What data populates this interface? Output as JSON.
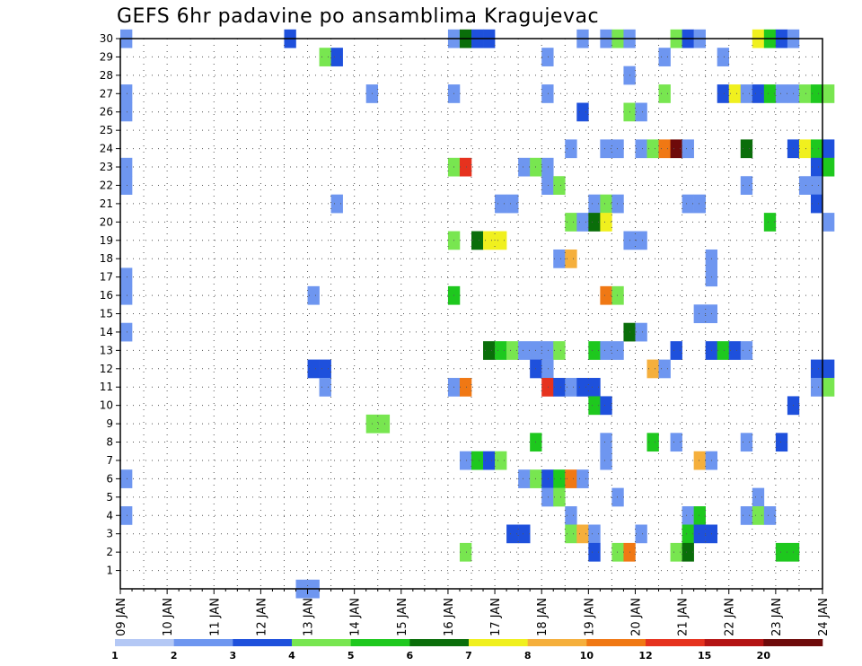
{
  "title": "GEFS 6hr padavine po ansamblima Kragujevac",
  "chart_data": {
    "type": "heatmap",
    "title": "GEFS 6hr padavine po ansamblima Kragujevac",
    "x_ticks": [
      "09 JAN",
      "10 JAN",
      "11 JAN",
      "12 JAN",
      "13 JAN",
      "14 JAN",
      "15 JAN",
      "16 JAN",
      "17 JAN",
      "18 JAN",
      "19 JAN",
      "20 JAN",
      "21 JAN",
      "22 JAN",
      "23 JAN",
      "24 JAN"
    ],
    "y_ticks": [
      1,
      2,
      3,
      4,
      5,
      6,
      7,
      8,
      9,
      10,
      11,
      12,
      13,
      14,
      15,
      16,
      17,
      18,
      19,
      20,
      21,
      22,
      23,
      24,
      25,
      26,
      27,
      28,
      29,
      30
    ],
    "ylim": [
      0,
      30
    ],
    "xlim_days": [
      "09 JAN",
      "24 JAN"
    ],
    "grid": true,
    "legend_placement": "bottom",
    "legend_levels": [
      "1",
      "2",
      "3",
      "4",
      "5",
      "6",
      "7",
      "8",
      "10",
      "12",
      "15",
      "20"
    ],
    "legend_colors": [
      "#b4c8f5",
      "#6e96f0",
      "#1e50dc",
      "#78e650",
      "#1ec81e",
      "#0a6e0a",
      "#f0f01e",
      "#f5af3c",
      "#f07814",
      "#e6321e",
      "#b41414",
      "#6e0a0a"
    ],
    "cells": [
      {
        "member": 30,
        "step": 0,
        "v": 1
      },
      {
        "member": 30,
        "step": 14,
        "v": 2
      },
      {
        "member": 30,
        "step": 28,
        "v": 1
      },
      {
        "member": 30,
        "step": 29,
        "v": 5
      },
      {
        "member": 30,
        "step": 30,
        "v": 2
      },
      {
        "member": 30,
        "step": 31,
        "v": 2
      },
      {
        "member": 30,
        "step": 39,
        "v": 1
      },
      {
        "member": 30,
        "step": 41,
        "v": 1
      },
      {
        "member": 30,
        "step": 42,
        "v": 3
      },
      {
        "member": 30,
        "step": 43,
        "v": 1
      },
      {
        "member": 30,
        "step": 47,
        "v": 3
      },
      {
        "member": 30,
        "step": 48,
        "v": 2
      },
      {
        "member": 30,
        "step": 49,
        "v": 1
      },
      {
        "member": 30,
        "step": 54,
        "v": 6
      },
      {
        "member": 30,
        "step": 55,
        "v": 4
      },
      {
        "member": 30,
        "step": 56,
        "v": 2
      },
      {
        "member": 30,
        "step": 57,
        "v": 1
      },
      {
        "member": 29,
        "step": 17,
        "v": 3
      },
      {
        "member": 29,
        "step": 18,
        "v": 2
      },
      {
        "member": 29,
        "step": 36,
        "v": 1
      },
      {
        "member": 29,
        "step": 46,
        "v": 1
      },
      {
        "member": 29,
        "step": 51,
        "v": 1
      },
      {
        "member": 28,
        "step": 43,
        "v": 1
      },
      {
        "member": 27,
        "step": 0,
        "v": 1
      },
      {
        "member": 27,
        "step": 21,
        "v": 1
      },
      {
        "member": 27,
        "step": 28,
        "v": 1
      },
      {
        "member": 27,
        "step": 36,
        "v": 1
      },
      {
        "member": 27,
        "step": 46,
        "v": 3
      },
      {
        "member": 27,
        "step": 51,
        "v": 2
      },
      {
        "member": 27,
        "step": 52,
        "v": 6
      },
      {
        "member": 27,
        "step": 53,
        "v": 1
      },
      {
        "member": 27,
        "step": 54,
        "v": 2
      },
      {
        "member": 27,
        "step": 55,
        "v": 4
      },
      {
        "member": 27,
        "step": 56,
        "v": 1
      },
      {
        "member": 27,
        "step": 57,
        "v": 1
      },
      {
        "member": 27,
        "step": 58,
        "v": 3
      },
      {
        "member": 27,
        "step": 59,
        "v": 4
      },
      {
        "member": 27,
        "step": 60,
        "v": 3
      },
      {
        "member": 26,
        "step": 0,
        "v": 1
      },
      {
        "member": 26,
        "step": 39,
        "v": 2
      },
      {
        "member": 26,
        "step": 43,
        "v": 3
      },
      {
        "member": 26,
        "step": 44,
        "v": 1
      },
      {
        "member": 24,
        "step": 38,
        "v": 1
      },
      {
        "member": 24,
        "step": 41,
        "v": 1
      },
      {
        "member": 24,
        "step": 42,
        "v": 1
      },
      {
        "member": 24,
        "step": 44,
        "v": 1
      },
      {
        "member": 24,
        "step": 45,
        "v": 3
      },
      {
        "member": 24,
        "step": 46,
        "v": 8
      },
      {
        "member": 24,
        "step": 47,
        "v": 11
      },
      {
        "member": 24,
        "step": 48,
        "v": 1
      },
      {
        "member": 24,
        "step": 53,
        "v": 5
      },
      {
        "member": 24,
        "step": 57,
        "v": 2
      },
      {
        "member": 24,
        "step": 58,
        "v": 6
      },
      {
        "member": 24,
        "step": 59,
        "v": 4
      },
      {
        "member": 24,
        "step": 60,
        "v": 2
      },
      {
        "member": 23,
        "step": 0,
        "v": 1
      },
      {
        "member": 23,
        "step": 28,
        "v": 3
      },
      {
        "member": 23,
        "step": 29,
        "v": 9
      },
      {
        "member": 23,
        "step": 34,
        "v": 1
      },
      {
        "member": 23,
        "step": 35,
        "v": 3
      },
      {
        "member": 23,
        "step": 36,
        "v": 1
      },
      {
        "member": 23,
        "step": 59,
        "v": 2
      },
      {
        "member": 23,
        "step": 60,
        "v": 4
      },
      {
        "member": 22,
        "step": 0,
        "v": 1
      },
      {
        "member": 22,
        "step": 36,
        "v": 1
      },
      {
        "member": 22,
        "step": 37,
        "v": 3
      },
      {
        "member": 22,
        "step": 53,
        "v": 1
      },
      {
        "member": 22,
        "step": 58,
        "v": 1
      },
      {
        "member": 22,
        "step": 59,
        "v": 1
      },
      {
        "member": 21,
        "step": 18,
        "v": 1
      },
      {
        "member": 21,
        "step": 32,
        "v": 1
      },
      {
        "member": 21,
        "step": 33,
        "v": 1
      },
      {
        "member": 21,
        "step": 40,
        "v": 1
      },
      {
        "member": 21,
        "step": 41,
        "v": 3
      },
      {
        "member": 21,
        "step": 42,
        "v": 1
      },
      {
        "member": 21,
        "step": 48,
        "v": 1
      },
      {
        "member": 21,
        "step": 49,
        "v": 1
      },
      {
        "member": 21,
        "step": 59,
        "v": 2
      },
      {
        "member": 20,
        "step": 38,
        "v": 3
      },
      {
        "member": 20,
        "step": 39,
        "v": 1
      },
      {
        "member": 20,
        "step": 40,
        "v": 5
      },
      {
        "member": 20,
        "step": 41,
        "v": 6
      },
      {
        "member": 20,
        "step": 55,
        "v": 4
      },
      {
        "member": 20,
        "step": 60,
        "v": 1
      },
      {
        "member": 19,
        "step": 28,
        "v": 3
      },
      {
        "member": 19,
        "step": 30,
        "v": 5
      },
      {
        "member": 19,
        "step": 31,
        "v": 6
      },
      {
        "member": 19,
        "step": 32,
        "v": 6
      },
      {
        "member": 19,
        "step": 43,
        "v": 1
      },
      {
        "member": 19,
        "step": 44,
        "v": 1
      },
      {
        "member": 18,
        "step": 37,
        "v": 1
      },
      {
        "member": 18,
        "step": 38,
        "v": 7
      },
      {
        "member": 18,
        "step": 50,
        "v": 1
      },
      {
        "member": 17,
        "step": 0,
        "v": 1
      },
      {
        "member": 17,
        "step": 50,
        "v": 1
      },
      {
        "member": 16,
        "step": 0,
        "v": 1
      },
      {
        "member": 16,
        "step": 16,
        "v": 1
      },
      {
        "member": 16,
        "step": 28,
        "v": 4
      },
      {
        "member": 16,
        "step": 41,
        "v": 8
      },
      {
        "member": 16,
        "step": 42,
        "v": 3
      },
      {
        "member": 15,
        "step": 49,
        "v": 1
      },
      {
        "member": 15,
        "step": 50,
        "v": 1
      },
      {
        "member": 14,
        "step": 0,
        "v": 1
      },
      {
        "member": 14,
        "step": 43,
        "v": 5
      },
      {
        "member": 14,
        "step": 44,
        "v": 1
      },
      {
        "member": 13,
        "step": 31,
        "v": 5
      },
      {
        "member": 13,
        "step": 32,
        "v": 4
      },
      {
        "member": 13,
        "step": 33,
        "v": 3
      },
      {
        "member": 13,
        "step": 34,
        "v": 1
      },
      {
        "member": 13,
        "step": 35,
        "v": 1
      },
      {
        "member": 13,
        "step": 36,
        "v": 1
      },
      {
        "member": 13,
        "step": 37,
        "v": 3
      },
      {
        "member": 13,
        "step": 40,
        "v": 4
      },
      {
        "member": 13,
        "step": 41,
        "v": 1
      },
      {
        "member": 13,
        "step": 42,
        "v": 1
      },
      {
        "member": 13,
        "step": 47,
        "v": 2
      },
      {
        "member": 13,
        "step": 50,
        "v": 2
      },
      {
        "member": 13,
        "step": 51,
        "v": 4
      },
      {
        "member": 13,
        "step": 52,
        "v": 2
      },
      {
        "member": 13,
        "step": 53,
        "v": 1
      },
      {
        "member": 12,
        "step": 16,
        "v": 2
      },
      {
        "member": 12,
        "step": 17,
        "v": 2
      },
      {
        "member": 12,
        "step": 35,
        "v": 2
      },
      {
        "member": 12,
        "step": 36,
        "v": 1
      },
      {
        "member": 12,
        "step": 45,
        "v": 7
      },
      {
        "member": 12,
        "step": 46,
        "v": 1
      },
      {
        "member": 12,
        "step": 59,
        "v": 2
      },
      {
        "member": 12,
        "step": 60,
        "v": 2
      },
      {
        "member": 11,
        "step": 17,
        "v": 1
      },
      {
        "member": 11,
        "step": 28,
        "v": 1
      },
      {
        "member": 11,
        "step": 29,
        "v": 8
      },
      {
        "member": 11,
        "step": 36,
        "v": 9
      },
      {
        "member": 11,
        "step": 37,
        "v": 2
      },
      {
        "member": 11,
        "step": 38,
        "v": 1
      },
      {
        "member": 11,
        "step": 39,
        "v": 2
      },
      {
        "member": 11,
        "step": 40,
        "v": 2
      },
      {
        "member": 11,
        "step": 59,
        "v": 1
      },
      {
        "member": 11,
        "step": 60,
        "v": 3
      },
      {
        "member": 10,
        "step": 40,
        "v": 4
      },
      {
        "member": 10,
        "step": 41,
        "v": 2
      },
      {
        "member": 10,
        "step": 57,
        "v": 2
      },
      {
        "member": 9,
        "step": 21,
        "v": 3
      },
      {
        "member": 9,
        "step": 22,
        "v": 3
      },
      {
        "member": 8,
        "step": 35,
        "v": 4
      },
      {
        "member": 8,
        "step": 41,
        "v": 1
      },
      {
        "member": 8,
        "step": 45,
        "v": 4
      },
      {
        "member": 8,
        "step": 47,
        "v": 1
      },
      {
        "member": 8,
        "step": 53,
        "v": 1
      },
      {
        "member": 8,
        "step": 56,
        "v": 2
      },
      {
        "member": 7,
        "step": 29,
        "v": 1
      },
      {
        "member": 7,
        "step": 30,
        "v": 4
      },
      {
        "member": 7,
        "step": 31,
        "v": 2
      },
      {
        "member": 7,
        "step": 32,
        "v": 3
      },
      {
        "member": 7,
        "step": 41,
        "v": 1
      },
      {
        "member": 7,
        "step": 49,
        "v": 7
      },
      {
        "member": 7,
        "step": 50,
        "v": 1
      },
      {
        "member": 6,
        "step": 0,
        "v": 1
      },
      {
        "member": 6,
        "step": 34,
        "v": 1
      },
      {
        "member": 6,
        "step": 35,
        "v": 3
      },
      {
        "member": 6,
        "step": 36,
        "v": 2
      },
      {
        "member": 6,
        "step": 37,
        "v": 4
      },
      {
        "member": 6,
        "step": 38,
        "v": 8
      },
      {
        "member": 6,
        "step": 39,
        "v": 1
      },
      {
        "member": 5,
        "step": 36,
        "v": 1
      },
      {
        "member": 5,
        "step": 37,
        "v": 3
      },
      {
        "member": 5,
        "step": 42,
        "v": 1
      },
      {
        "member": 5,
        "step": 54,
        "v": 1
      },
      {
        "member": 4,
        "step": 0,
        "v": 1
      },
      {
        "member": 4,
        "step": 38,
        "v": 1
      },
      {
        "member": 4,
        "step": 48,
        "v": 1
      },
      {
        "member": 4,
        "step": 49,
        "v": 4
      },
      {
        "member": 4,
        "step": 53,
        "v": 1
      },
      {
        "member": 4,
        "step": 54,
        "v": 3
      },
      {
        "member": 4,
        "step": 55,
        "v": 1
      },
      {
        "member": 3,
        "step": 33,
        "v": 2
      },
      {
        "member": 3,
        "step": 34,
        "v": 2
      },
      {
        "member": 3,
        "step": 38,
        "v": 3
      },
      {
        "member": 3,
        "step": 39,
        "v": 7
      },
      {
        "member": 3,
        "step": 40,
        "v": 1
      },
      {
        "member": 3,
        "step": 44,
        "v": 1
      },
      {
        "member": 3,
        "step": 48,
        "v": 4
      },
      {
        "member": 3,
        "step": 49,
        "v": 2
      },
      {
        "member": 3,
        "step": 50,
        "v": 2
      },
      {
        "member": 2,
        "step": 29,
        "v": 3
      },
      {
        "member": 2,
        "step": 40,
        "v": 2
      },
      {
        "member": 2,
        "step": 42,
        "v": 3
      },
      {
        "member": 2,
        "step": 43,
        "v": 8
      },
      {
        "member": 2,
        "step": 47,
        "v": 3
      },
      {
        "member": 2,
        "step": 48,
        "v": 5
      },
      {
        "member": 2,
        "step": 56,
        "v": 4
      },
      {
        "member": 2,
        "step": 57,
        "v": 4
      },
      {
        "member": 0,
        "step": 15,
        "v": 1
      },
      {
        "member": 0,
        "step": 16,
        "v": 1
      }
    ]
  }
}
